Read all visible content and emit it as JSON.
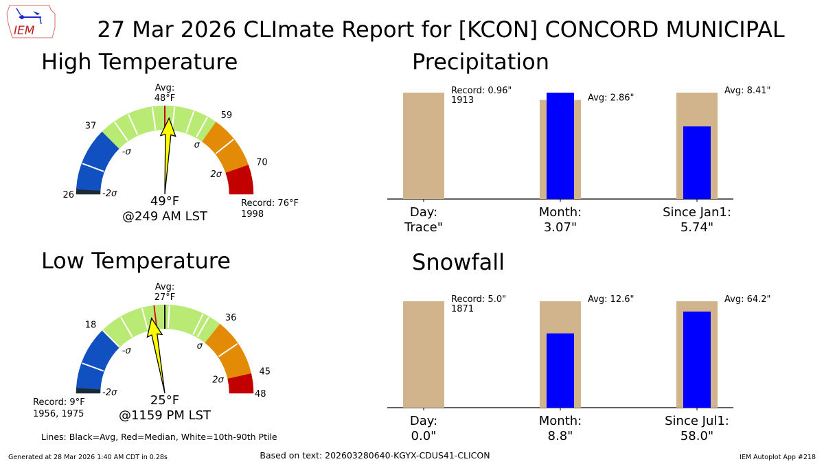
{
  "title": "27 Mar 2026 CLImate Report for [KCON] CONCORD MUNICIPAL",
  "logo_text": "IEM",
  "footer": {
    "lines_legend": "Lines: Black=Avg, Red=Median, White=10th-90th Ptile",
    "generated": "Generated at 28 Mar 2026 1:40 AM CDT in 0.28s",
    "based_on": "Based on text: 202603280640-KGYX-CDUS41-CLICON",
    "app": "IEM Autoplot App #218"
  },
  "colors": {
    "blue": "#1050c0",
    "green": "#b8ea74",
    "orange": "#e38a06",
    "red": "#c20000",
    "dark": "#1c2a36",
    "needle": "#ffff00",
    "tan": "#d2b48c",
    "obs": "#0000ff"
  },
  "chart_data": [
    {
      "type": "gauge",
      "title": "High Temperature",
      "unit": "°F",
      "min": 26,
      "avg": 48,
      "median": 48,
      "max": 76,
      "avg_label": [
        "Avg:",
        "48°F"
      ],
      "observed": 49,
      "observed_label": "49°F",
      "observed_time": "@249 AM LST",
      "bands": [
        {
          "from": 26,
          "to": 26.8,
          "color": "dark"
        },
        {
          "from": 26.8,
          "to": 37,
          "color": "blue"
        },
        {
          "from": 37,
          "to": 59,
          "color": "green"
        },
        {
          "from": 59,
          "to": 70,
          "color": "orange"
        },
        {
          "from": 70,
          "to": 76,
          "color": "red"
        }
      ],
      "percentile_lines": [
        31,
        39.5,
        42,
        46,
        50,
        54,
        57,
        64
      ],
      "tick_labels": [
        {
          "value": 26,
          "text": "26",
          "side": "outer"
        },
        {
          "value": 37,
          "text": "37",
          "side": "outer"
        },
        {
          "value": 59,
          "text": "59",
          "side": "outer"
        },
        {
          "value": 70,
          "text": "70",
          "side": "outer"
        }
      ],
      "sigma_labels": [
        {
          "value": 26,
          "text": "-2σ"
        },
        {
          "value": 37,
          "text": "-σ"
        },
        {
          "value": 59,
          "text": "σ"
        },
        {
          "value": 70,
          "text": "2σ"
        }
      ],
      "record_label": [
        "Record: 76°F",
        "1998"
      ],
      "record_side": "right"
    },
    {
      "type": "gauge",
      "title": "Low Temperature",
      "unit": "°F",
      "min": 9,
      "avg": 27,
      "median": 25.6,
      "max": 48,
      "avg_label": [
        "Avg:",
        "27°F"
      ],
      "observed": 25,
      "observed_label": "25°F",
      "observed_time": "@1159 PM LST",
      "bands": [
        {
          "from": 9,
          "to": 9.7,
          "color": "dark"
        },
        {
          "from": 9.7,
          "to": 18,
          "color": "blue"
        },
        {
          "from": 18,
          "to": 36,
          "color": "green"
        },
        {
          "from": 36,
          "to": 45,
          "color": "orange"
        },
        {
          "from": 45,
          "to": 48,
          "color": "red"
        }
      ],
      "percentile_lines": [
        13,
        18.1,
        21,
        24,
        27.7,
        33,
        34,
        40
      ],
      "tick_labels": [
        {
          "value": 18,
          "text": "18",
          "side": "outer"
        },
        {
          "value": 36,
          "text": "36",
          "side": "outer"
        },
        {
          "value": 45,
          "text": "45",
          "side": "outer"
        },
        {
          "value": 48,
          "text": "48",
          "side": "outer"
        }
      ],
      "sigma_labels": [
        {
          "value": 9,
          "text": "-2σ"
        },
        {
          "value": 18,
          "text": "-σ"
        },
        {
          "value": 36,
          "text": "σ"
        },
        {
          "value": 45,
          "text": "2σ"
        }
      ],
      "record_label": [
        "Record: 9°F",
        "1956, 1975"
      ],
      "record_side": "left"
    },
    {
      "type": "bar",
      "title": "Precipitation",
      "categories": [
        {
          "name": "Day:",
          "value_label": "Trace\"",
          "observed": 0,
          "reference": 0.96,
          "annotation": [
            "Record: 0.96\"",
            "1913"
          ]
        },
        {
          "name": "Month:",
          "value_label": "3.07\"",
          "observed": 3.07,
          "reference": 2.86,
          "annotation": [
            "Avg: 2.86\""
          ]
        },
        {
          "name": "Since Jan1:",
          "value_label": "5.74\"",
          "observed": 5.74,
          "reference": 8.41,
          "annotation": [
            "Avg: 8.41\""
          ]
        }
      ],
      "normalization": "per-category max"
    },
    {
      "type": "bar",
      "title": "Snowfall",
      "categories": [
        {
          "name": "Day:",
          "value_label": "0.0\"",
          "observed": 0.0,
          "reference": 5.0,
          "annotation": [
            "Record: 5.0\"",
            "1871"
          ]
        },
        {
          "name": "Month:",
          "value_label": "8.8\"",
          "observed": 8.8,
          "reference": 12.6,
          "annotation": [
            "Avg: 12.6\""
          ]
        },
        {
          "name": "Since Jul1:",
          "value_label": "58.0\"",
          "observed": 58.0,
          "reference": 64.2,
          "annotation": [
            "Avg: 64.2\""
          ]
        }
      ],
      "normalization": "per-category max"
    }
  ]
}
